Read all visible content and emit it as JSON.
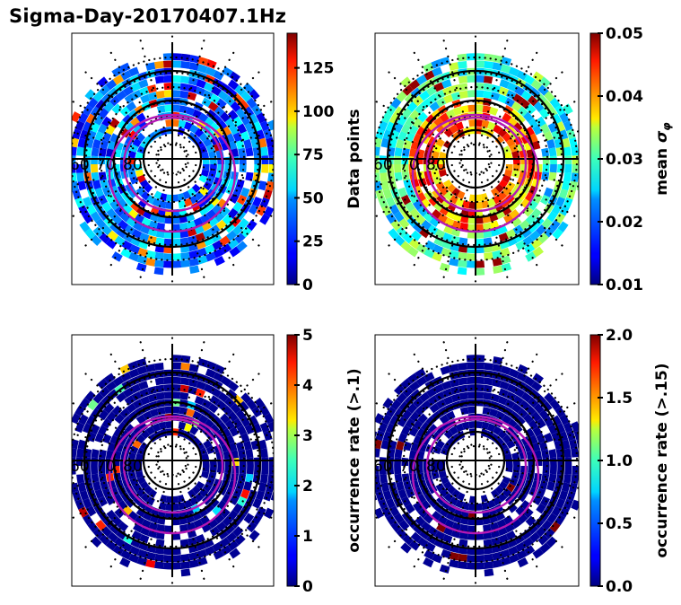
{
  "figure": {
    "title": "Sigma-Day-20170407.1Hz"
  },
  "chart_data": [
    {
      "type": "heatmap",
      "projection": "polar",
      "panel": "top-left",
      "title": "",
      "latitude_labels": [
        "60",
        "70",
        "80"
      ],
      "colormap": "jet",
      "colorbar": {
        "label": "Data points",
        "range": [
          0,
          145
        ],
        "ticks": [
          0,
          25,
          50,
          75,
          100,
          125
        ],
        "tick_labels": [
          "0",
          "25",
          "50",
          "75",
          "100",
          "125"
        ]
      },
      "overlay": "auroral oval contours (magenta)",
      "dominant_values": "mostly 10-60, scattered bins near 100-130 on outer rings"
    },
    {
      "type": "heatmap",
      "projection": "polar",
      "panel": "top-right",
      "title": "",
      "latitude_labels": [
        "60",
        "70",
        "80"
      ],
      "colormap": "jet",
      "colorbar": {
        "label": "mean σ_φ",
        "range": [
          0.01,
          0.05
        ],
        "ticks": [
          0.01,
          0.02,
          0.03,
          0.04,
          0.05
        ],
        "tick_labels": [
          "0.01",
          "0.02",
          "0.03",
          "0.04",
          "0.05"
        ]
      },
      "overlay": "auroral oval contours (magenta)",
      "dominant_values": "outer rings ~0.02-0.03, inner rings ~0.035-0.05"
    },
    {
      "type": "heatmap",
      "projection": "polar",
      "panel": "bottom-left",
      "title": "",
      "latitude_labels": [
        "60",
        "70",
        "80"
      ],
      "colormap": "jet",
      "colorbar": {
        "label": "occurrence rate (>.1)",
        "range": [
          0,
          5
        ],
        "ticks": [
          0,
          1,
          2,
          3,
          4,
          5
        ],
        "tick_labels": [
          "0",
          "1",
          "2",
          "3",
          "4",
          "5"
        ]
      },
      "overlay": "auroral oval contours (magenta)",
      "dominant_values": "mostly 0, a few bins 1.5-5 near the oval"
    },
    {
      "type": "heatmap",
      "projection": "polar",
      "panel": "bottom-right",
      "title": "",
      "latitude_labels": [
        "60",
        "70",
        "80"
      ],
      "colormap": "jet",
      "colorbar": {
        "label": "occurrence rate (>.15)",
        "range": [
          0,
          2
        ],
        "ticks": [
          0.0,
          0.5,
          1.0,
          1.5,
          2.0
        ],
        "tick_labels": [
          "0.0",
          "0.5",
          "1.0",
          "1.5",
          "2.0"
        ]
      },
      "overlay": "auroral oval contours (magenta)",
      "dominant_values": "mostly 0, a few bins at 2.0 near midnight sector"
    }
  ]
}
